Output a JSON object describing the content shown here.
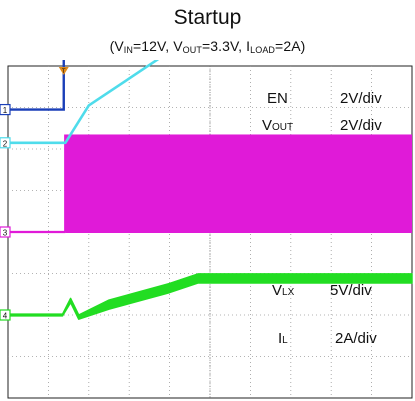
{
  "title": "Startup",
  "conditions": {
    "vin_sym": "V",
    "vin_sub": "IN",
    "vin_val": "=12V, ",
    "vout_sym": "V",
    "vout_sub": "OUT",
    "vout_val": "=3.3V, ",
    "iload_sym": "I",
    "iload_sub": "LOAD",
    "iload_val": "=2A)"
  },
  "chart_data": {
    "type": "line",
    "divisions": {
      "x": 10,
      "y": 8
    },
    "grid": true,
    "trigger_marker": "T",
    "series": [
      {
        "name": "EN",
        "channel": "1",
        "scale": "2V/div",
        "color": "#1a3fb8",
        "points": [
          [
            0,
            2.95
          ],
          [
            1.38,
            2.95
          ],
          [
            1.38,
            5.85
          ],
          [
            10,
            5.85
          ]
        ]
      },
      {
        "name": "VOUT",
        "name_main": "V",
        "name_sub": "OUT",
        "channel": "2",
        "scale": "2V/div",
        "color": "#4fdceb",
        "points": [
          [
            0,
            2.15
          ],
          [
            1.42,
            2.15
          ],
          [
            2.0,
            3.05
          ],
          [
            4.0,
            4.35
          ],
          [
            4.6,
            5.0
          ],
          [
            5.0,
            5.05
          ],
          [
            10,
            5.05
          ]
        ]
      },
      {
        "name": "VLX",
        "name_main": "V",
        "name_sub": "LX",
        "channel": "3",
        "scale": "5V/div",
        "color": "#e01ad8",
        "baseline": 0.0,
        "switching_high": 2.35,
        "switching_start": 1.42
      },
      {
        "name": "IL",
        "name_main": "I",
        "name_sub": "L",
        "channel": "4",
        "scale": "2A/div",
        "color": "#22dd22",
        "points": [
          [
            0,
            -2.0
          ],
          [
            1.35,
            -2.0
          ],
          [
            1.55,
            -1.65
          ],
          [
            1.75,
            -2.05
          ],
          [
            2.5,
            -1.75
          ],
          [
            4.0,
            -1.35
          ],
          [
            4.7,
            -1.12
          ],
          [
            10,
            -1.12
          ]
        ],
        "ripple": 0.22
      }
    ]
  }
}
